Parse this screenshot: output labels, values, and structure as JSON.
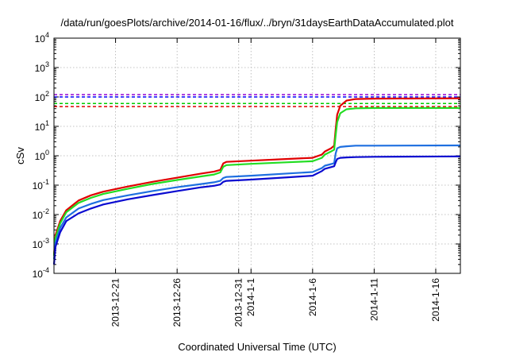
{
  "chart_data": {
    "type": "line",
    "title": "/data/run/goesPlots/archive/2014-01-16/flux/../bryn/31daysEarthDataAccumulated.plot",
    "xlabel": "Coordinated Universal Time (UTC)",
    "ylabel": "cSv",
    "xlim": [
      "2013-12-16",
      "2014-01-18"
    ],
    "ylim": [
      0.0001,
      10000
    ],
    "yscale": "log",
    "grid": true,
    "legend": "none",
    "y_tick_labels": [
      {
        "base": "10",
        "exp": "-4"
      },
      {
        "base": "10",
        "exp": "-3"
      },
      {
        "base": "10",
        "exp": "-2"
      },
      {
        "base": "10",
        "exp": "-1"
      },
      {
        "base": "10",
        "exp": "0"
      },
      {
        "base": "10",
        "exp": "1"
      },
      {
        "base": "10",
        "exp": "2"
      },
      {
        "base": "10",
        "exp": "3"
      },
      {
        "base": "10",
        "exp": "4"
      }
    ],
    "x_ticks": [
      {
        "date": "2013-12-21",
        "label": "2013-12-21"
      },
      {
        "date": "2013-12-26",
        "label": "2013-12-26"
      },
      {
        "date": "2013-12-31",
        "label": "2013-12-31"
      },
      {
        "date": "2014-01-01",
        "label": "2014-1-1"
      },
      {
        "date": "2014-01-06",
        "label": "2014-1-6"
      },
      {
        "date": "2014-01-11",
        "label": "2014-1-11"
      },
      {
        "date": "2014-01-16",
        "label": "2014-1-16"
      }
    ],
    "thresholds": [
      {
        "value": 120,
        "color": "#9400d3"
      },
      {
        "value": 100,
        "color": "#0000ff"
      },
      {
        "value": 60,
        "color": "#00cc00"
      },
      {
        "value": 47,
        "color": "#dd0000"
      }
    ],
    "series": [
      {
        "color": "#e00000",
        "points": [
          [
            "2013-12-16T00:00",
            0.0004
          ],
          [
            "2013-12-16T03:00",
            0.002
          ],
          [
            "2013-12-16T12:00",
            0.006
          ],
          [
            "2013-12-17",
            0.014
          ],
          [
            "2013-12-18",
            0.03
          ],
          [
            "2013-12-19",
            0.045
          ],
          [
            "2013-12-20",
            0.06
          ],
          [
            "2013-12-22",
            0.09
          ],
          [
            "2013-12-24",
            0.13
          ],
          [
            "2013-12-26",
            0.18
          ],
          [
            "2013-12-28",
            0.25
          ],
          [
            "2013-12-29",
            0.29
          ],
          [
            "2013-12-29T12:00",
            0.33
          ],
          [
            "2013-12-29T18:00",
            0.55
          ],
          [
            "2013-12-30",
            0.62
          ],
          [
            "2014-01-01",
            0.68
          ],
          [
            "2014-01-04",
            0.78
          ],
          [
            "2014-01-06",
            0.85
          ],
          [
            "2014-01-06T18:00",
            1.1
          ],
          [
            "2014-01-07",
            1.4
          ],
          [
            "2014-01-07T12:00",
            1.8
          ],
          [
            "2014-01-07T18:00",
            2.2
          ],
          [
            "2014-01-07T21:00",
            8
          ],
          [
            "2014-01-08",
            25
          ],
          [
            "2014-01-08T06:00",
            50
          ],
          [
            "2014-01-08T18:00",
            75
          ],
          [
            "2014-01-09T12:00",
            85
          ],
          [
            "2014-01-11",
            88
          ],
          [
            "2014-01-18",
            90
          ]
        ]
      },
      {
        "color": "#22dd22",
        "points": [
          [
            "2013-12-16T00:00",
            0.0004
          ],
          [
            "2013-12-16T03:00",
            0.0016
          ],
          [
            "2013-12-16T12:00",
            0.005
          ],
          [
            "2013-12-17",
            0.012
          ],
          [
            "2013-12-18",
            0.025
          ],
          [
            "2013-12-19",
            0.037
          ],
          [
            "2013-12-20",
            0.05
          ],
          [
            "2013-12-22",
            0.075
          ],
          [
            "2013-12-24",
            0.11
          ],
          [
            "2013-12-26",
            0.15
          ],
          [
            "2013-12-28",
            0.2
          ],
          [
            "2013-12-29",
            0.23
          ],
          [
            "2013-12-29T12:00",
            0.27
          ],
          [
            "2013-12-29T18:00",
            0.42
          ],
          [
            "2013-12-30",
            0.48
          ],
          [
            "2014-01-01",
            0.53
          ],
          [
            "2014-01-04",
            0.6
          ],
          [
            "2014-01-06",
            0.65
          ],
          [
            "2014-01-06T18:00",
            0.85
          ],
          [
            "2014-01-07",
            1.1
          ],
          [
            "2014-01-07T12:00",
            1.4
          ],
          [
            "2014-01-07T18:00",
            1.6
          ],
          [
            "2014-01-07T21:00",
            5
          ],
          [
            "2014-01-08",
            14
          ],
          [
            "2014-01-08T06:00",
            28
          ],
          [
            "2014-01-08T18:00",
            38
          ],
          [
            "2014-01-09T12:00",
            41
          ],
          [
            "2014-01-11",
            42
          ],
          [
            "2014-01-18",
            42
          ]
        ]
      },
      {
        "color": "#1e6fe0",
        "points": [
          [
            "2013-12-16T00:00",
            0.0003
          ],
          [
            "2013-12-16T03:00",
            0.0011
          ],
          [
            "2013-12-16T12:00",
            0.0035
          ],
          [
            "2013-12-17",
            0.008
          ],
          [
            "2013-12-18",
            0.016
          ],
          [
            "2013-12-19",
            0.023
          ],
          [
            "2013-12-20",
            0.031
          ],
          [
            "2013-12-22",
            0.045
          ],
          [
            "2013-12-24",
            0.063
          ],
          [
            "2013-12-26",
            0.085
          ],
          [
            "2013-12-28",
            0.11
          ],
          [
            "2013-12-29",
            0.125
          ],
          [
            "2013-12-29T12:00",
            0.14
          ],
          [
            "2013-12-29T18:00",
            0.175
          ],
          [
            "2013-12-30",
            0.19
          ],
          [
            "2014-01-01",
            0.21
          ],
          [
            "2014-01-04",
            0.25
          ],
          [
            "2014-01-06",
            0.28
          ],
          [
            "2014-01-06T18:00",
            0.38
          ],
          [
            "2014-01-07",
            0.46
          ],
          [
            "2014-01-07T12:00",
            0.52
          ],
          [
            "2014-01-07T18:00",
            0.56
          ],
          [
            "2014-01-07T21:00",
            1.2
          ],
          [
            "2014-01-08",
            1.8
          ],
          [
            "2014-01-08T06:00",
            2.0
          ],
          [
            "2014-01-08T18:00",
            2.1
          ],
          [
            "2014-01-09T12:00",
            2.2
          ],
          [
            "2014-01-11",
            2.2
          ],
          [
            "2014-01-18",
            2.25
          ]
        ]
      },
      {
        "color": "#0a0ad0",
        "points": [
          [
            "2013-12-16T00:00",
            0.0002
          ],
          [
            "2013-12-16T03:00",
            0.0008
          ],
          [
            "2013-12-16T12:00",
            0.0025
          ],
          [
            "2013-12-17",
            0.006
          ],
          [
            "2013-12-18",
            0.011
          ],
          [
            "2013-12-19",
            0.016
          ],
          [
            "2013-12-20",
            0.022
          ],
          [
            "2013-12-22",
            0.033
          ],
          [
            "2013-12-24",
            0.046
          ],
          [
            "2013-12-26",
            0.063
          ],
          [
            "2013-12-28",
            0.085
          ],
          [
            "2013-12-29",
            0.095
          ],
          [
            "2013-12-29T12:00",
            0.105
          ],
          [
            "2013-12-29T18:00",
            0.13
          ],
          [
            "2013-12-30",
            0.14
          ],
          [
            "2014-01-01",
            0.155
          ],
          [
            "2014-01-04",
            0.185
          ],
          [
            "2014-01-06",
            0.21
          ],
          [
            "2014-01-06T18:00",
            0.3
          ],
          [
            "2014-01-07",
            0.36
          ],
          [
            "2014-01-07T12:00",
            0.41
          ],
          [
            "2014-01-07T18:00",
            0.44
          ],
          [
            "2014-01-07T21:00",
            0.6
          ],
          [
            "2014-01-08",
            0.78
          ],
          [
            "2014-01-08T06:00",
            0.85
          ],
          [
            "2014-01-08T18:00",
            0.88
          ],
          [
            "2014-01-09T12:00",
            0.9
          ],
          [
            "2014-01-11",
            0.92
          ],
          [
            "2014-01-18",
            0.95
          ]
        ]
      }
    ]
  }
}
